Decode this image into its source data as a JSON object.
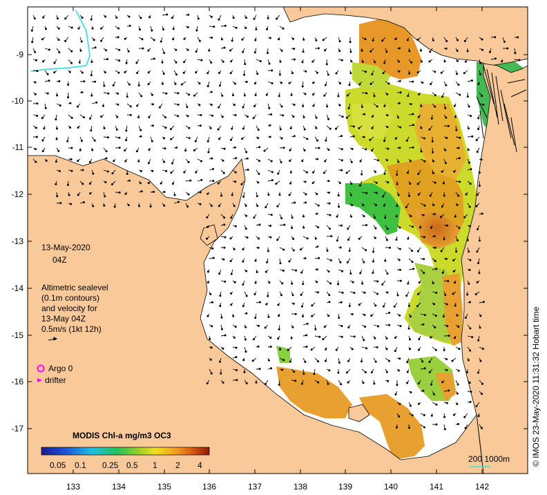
{
  "map": {
    "date": "13-May-2020",
    "time": "04Z",
    "legend_lines": [
      "Altimetric sealevel",
      "(0.1m contours)",
      "and velocity for",
      "13-May 04Z",
      "0.5m/s (1kt 12h)"
    ],
    "argo_label": "Argo 0",
    "drifter_label": "drifter",
    "colorbar": {
      "title": "MODIS Chl-a mg/m3 OC3",
      "labels": [
        "0.05",
        "0.1",
        "0.25",
        "0.5",
        "1",
        "2",
        "4"
      ]
    },
    "scale_label": "200  1000m",
    "credit": "© IMOS 23-May-2020 11:31:32 Hobart time",
    "x_ticks": [
      "133",
      "134",
      "135",
      "136",
      "137",
      "138",
      "139",
      "140",
      "141",
      "142"
    ],
    "y_ticks": [
      "-9",
      "-10",
      "-11",
      "-12",
      "-13",
      "-14",
      "-15",
      "-16",
      "-17"
    ],
    "colors": {
      "land": "#f9c99a",
      "argo": "#ff00ff",
      "drifter": "#ff00ff",
      "scale_line": "#40e0d0",
      "coast_line": "#40e0e0"
    }
  }
}
